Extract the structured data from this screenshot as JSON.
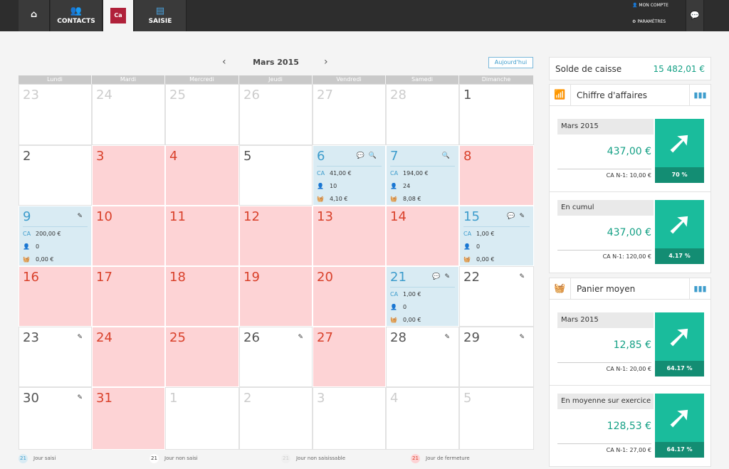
{
  "nav": {
    "contacts": "CONTACTS",
    "logo": "Ca",
    "saisie": "SAISIE",
    "account": "MON COMPTE",
    "settings": "PARAMÈTRES"
  },
  "calendar": {
    "month": "Mars 2015",
    "prev": "‹",
    "next": "›",
    "today": "Aujourd'hui",
    "days": [
      "Lundi",
      "Mardi",
      "Mercredi",
      "Jeudi",
      "Vendredi",
      "Samedi",
      "Dimanche"
    ],
    "cells": [
      {
        "d": "23",
        "t": "o"
      },
      {
        "d": "24",
        "t": "o"
      },
      {
        "d": "25",
        "t": "o"
      },
      {
        "d": "26",
        "t": "o"
      },
      {
        "d": "27",
        "t": "o"
      },
      {
        "d": "28",
        "t": "o"
      },
      {
        "d": "1",
        "t": "n"
      },
      {
        "d": "2",
        "t": "n"
      },
      {
        "d": "3",
        "t": "f"
      },
      {
        "d": "4",
        "t": "f"
      },
      {
        "d": "5",
        "t": "n"
      },
      {
        "d": "6",
        "t": "s",
        "icons": [
          "comment",
          "search"
        ],
        "ca": "41,00 €",
        "clients": "10",
        "basket": "4,10 €"
      },
      {
        "d": "7",
        "t": "s",
        "icons": [
          "search"
        ],
        "ca": "194,00 €",
        "clients": "24",
        "basket": "8,08 €"
      },
      {
        "d": "8",
        "t": "f"
      },
      {
        "d": "9",
        "t": "s",
        "icons": [
          "edit"
        ],
        "ca": "200,00 €",
        "clients": "0",
        "basket": "0,00 €"
      },
      {
        "d": "10",
        "t": "f"
      },
      {
        "d": "11",
        "t": "f"
      },
      {
        "d": "12",
        "t": "f"
      },
      {
        "d": "13",
        "t": "f"
      },
      {
        "d": "14",
        "t": "f"
      },
      {
        "d": "15",
        "t": "s",
        "icons": [
          "comment",
          "edit"
        ],
        "ca": "1,00 €",
        "clients": "0",
        "basket": "0,00 €"
      },
      {
        "d": "16",
        "t": "f"
      },
      {
        "d": "17",
        "t": "f"
      },
      {
        "d": "18",
        "t": "f"
      },
      {
        "d": "19",
        "t": "f"
      },
      {
        "d": "20",
        "t": "f"
      },
      {
        "d": "21",
        "t": "s",
        "icons": [
          "comment",
          "edit"
        ],
        "ca": "1,00 €",
        "clients": "0",
        "basket": "0,00 €"
      },
      {
        "d": "22",
        "t": "n",
        "icons": [
          "edit"
        ]
      },
      {
        "d": "23",
        "t": "n",
        "icons": [
          "edit"
        ]
      },
      {
        "d": "24",
        "t": "f"
      },
      {
        "d": "25",
        "t": "f"
      },
      {
        "d": "26",
        "t": "n",
        "icons": [
          "edit"
        ]
      },
      {
        "d": "27",
        "t": "f"
      },
      {
        "d": "28",
        "t": "n",
        "icons": [
          "edit"
        ]
      },
      {
        "d": "29",
        "t": "n",
        "icons": [
          "edit"
        ]
      },
      {
        "d": "30",
        "t": "n",
        "icons": [
          "edit"
        ]
      },
      {
        "d": "31",
        "t": "f"
      },
      {
        "d": "1",
        "t": "o"
      },
      {
        "d": "2",
        "t": "o"
      },
      {
        "d": "3",
        "t": "o"
      },
      {
        "d": "4",
        "t": "o"
      },
      {
        "d": "5",
        "t": "o"
      }
    ],
    "ca_label": "CA"
  },
  "legend": [
    {
      "n": "21",
      "label": "Jour saisi"
    },
    {
      "n": "21",
      "label": "Jour non saisi"
    },
    {
      "n": "21",
      "label": "Jour non saisissable"
    },
    {
      "n": "21",
      "label": "Jour de fermeture"
    }
  ],
  "solde": {
    "label": "Solde de caisse",
    "value": "15 482,01 €"
  },
  "ca": {
    "title": "Chiffre d'affaires",
    "blocks": [
      {
        "title": "Mars 2015",
        "value": "437,00 €",
        "prev": "CA N-1: 10,00 €",
        "pct": "70 %"
      },
      {
        "title": "En cumul",
        "value": "437,00 €",
        "prev": "CA N-1: 120,00 €",
        "pct": "4.17 %"
      }
    ]
  },
  "panier": {
    "title": "Panier moyen",
    "blocks": [
      {
        "title": "Mars 2015",
        "value": "12,85 €",
        "prev": "CA N-1: 20,00 €",
        "pct": "64.17 %"
      },
      {
        "title": "En moyenne sur exercice",
        "value": "128,53 €",
        "prev": "CA N-1: 27,00 €",
        "pct": "64.17 %"
      }
    ]
  },
  "colors": {
    "saisi": "#d9ebf3",
    "fermeture": "#fdd3d5",
    "accent": "#1abc9c",
    "blue": "#3d9ccc"
  }
}
